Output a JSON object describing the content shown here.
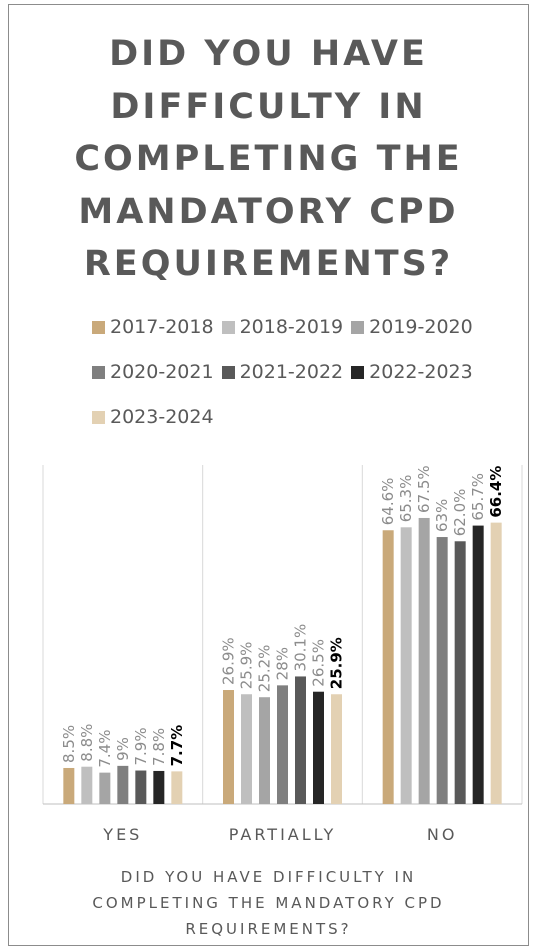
{
  "chart_data": {
    "type": "bar",
    "title": "DID YOU HAVE DIFFICULTY IN COMPLETING THE MANDATORY CPD REQUIREMENTS?",
    "x_label": "DID YOU HAVE DIFFICULTY IN COMPLETING THE MANDATORY CPD REQUIREMENTS?",
    "categories": [
      "YES",
      "PARTIALLY",
      "NO"
    ],
    "ylim": [
      0,
      80
    ],
    "series": [
      {
        "name": "2017-2018",
        "color": "#c9a97a",
        "values": [
          8.5,
          26.9,
          64.6
        ],
        "value_labels": [
          "8.5%",
          "26.9%",
          "64.6%"
        ]
      },
      {
        "name": "2018-2019",
        "color": "#bfbfbf",
        "values": [
          8.8,
          25.9,
          65.3
        ],
        "value_labels": [
          "8.8%",
          "25.9%",
          "65.3%"
        ]
      },
      {
        "name": "2019-2020",
        "color": "#a5a5a5",
        "values": [
          7.4,
          25.2,
          67.5
        ],
        "value_labels": [
          "7.4%",
          "25.2%",
          "67.5%"
        ]
      },
      {
        "name": "2020-2021",
        "color": "#7f7f7f",
        "values": [
          9,
          28,
          63
        ],
        "value_labels": [
          "9%",
          "28%",
          "63%"
        ]
      },
      {
        "name": "2021-2022",
        "color": "#595959",
        "values": [
          7.9,
          30.1,
          62.0
        ],
        "value_labels": [
          "7.9%",
          "30.1%",
          "62.0%"
        ]
      },
      {
        "name": "2022-2023",
        "color": "#262626",
        "values": [
          7.8,
          26.5,
          65.7
        ],
        "value_labels": [
          "7.8%",
          "26.5%",
          "65.7%"
        ]
      },
      {
        "name": "2023-2024",
        "color": "#e3d1b3",
        "values": [
          7.7,
          25.9,
          66.4
        ],
        "value_labels": [
          "7.7%",
          "25.9%",
          "66.4%"
        ]
      }
    ]
  }
}
